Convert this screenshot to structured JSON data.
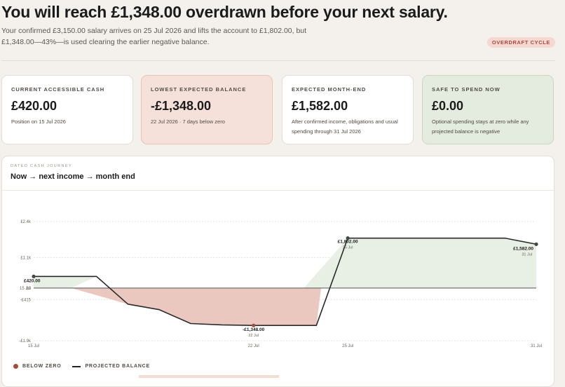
{
  "header": {
    "title": "You will reach £1,348.00 overdrawn before your next salary.",
    "subtitle": "Your confirmed £3,150.00 salary arrives on 25 Jul 2026 and lifts the account to £1,802.00, but £1,348.00—43%—is used clearing the earlier negative balance.",
    "badge": "OVERDRAFT CYCLE"
  },
  "cards": [
    {
      "label": "CURRENT ACCESSIBLE CASH",
      "value": "£420.00",
      "desc": "Position on 15 Jul 2026"
    },
    {
      "label": "LOWEST EXPECTED BALANCE",
      "value": "-£1,348.00",
      "desc": "22 Jul 2026 · 7 days below zero"
    },
    {
      "label": "EXPECTED MONTH-END",
      "value": "£1,582.00",
      "desc": "After confirmed income, obligations and usual spending through 31 Jul 2026"
    },
    {
      "label": "SAFE TO SPEND NOW",
      "value": "£0.00",
      "desc": "Optional spending stays at zero while any projected balance is negative"
    }
  ],
  "journey": {
    "eyebrow": "DATED CASH JOURNEY",
    "title": "Now → next income → month end"
  },
  "legend": {
    "below_zero": "BELOW ZERO",
    "projected": "PROJECTED BALANCE"
  },
  "colors": {
    "line": "#2b2b2b",
    "negative_fill": "#e8c2b8",
    "positive_fill": "#e6eee3",
    "marker_negative": "#a34c38",
    "marker": "#3e4a42"
  },
  "chart_data": {
    "type": "line",
    "x_unit": "day of July 2026",
    "series": [
      {
        "name": "PROJECTED BALANCE",
        "x": [
          15,
          16,
          17,
          18,
          19,
          20,
          21,
          22,
          23,
          24,
          25,
          26,
          27,
          28,
          29,
          30,
          31
        ],
        "y": [
          420,
          420,
          420,
          -580,
          -780,
          -1280,
          -1330,
          -1348,
          -1348,
          -1348,
          1802,
          1802,
          1802,
          1802,
          1802,
          1802,
          1582
        ]
      }
    ],
    "y_ticks": [
      "£2.4k",
      "£1.1k",
      "£0",
      "-£415",
      "-£1.9k"
    ],
    "x_ticks": [
      "15 Jul",
      "22 Jul",
      "25 Jul",
      "31 Jul"
    ],
    "annotations": [
      {
        "value": "£420.00",
        "date": "15 Jul"
      },
      {
        "value": "-£1,348.00",
        "date": "22 Jul"
      },
      {
        "value": "£1,802.00",
        "date": "25 Jul"
      },
      {
        "value": "£1,582.00",
        "date": "31 Jul"
      }
    ],
    "ylim": [
      -1900,
      2400
    ],
    "xlim": [
      15,
      31
    ],
    "grid": true
  }
}
